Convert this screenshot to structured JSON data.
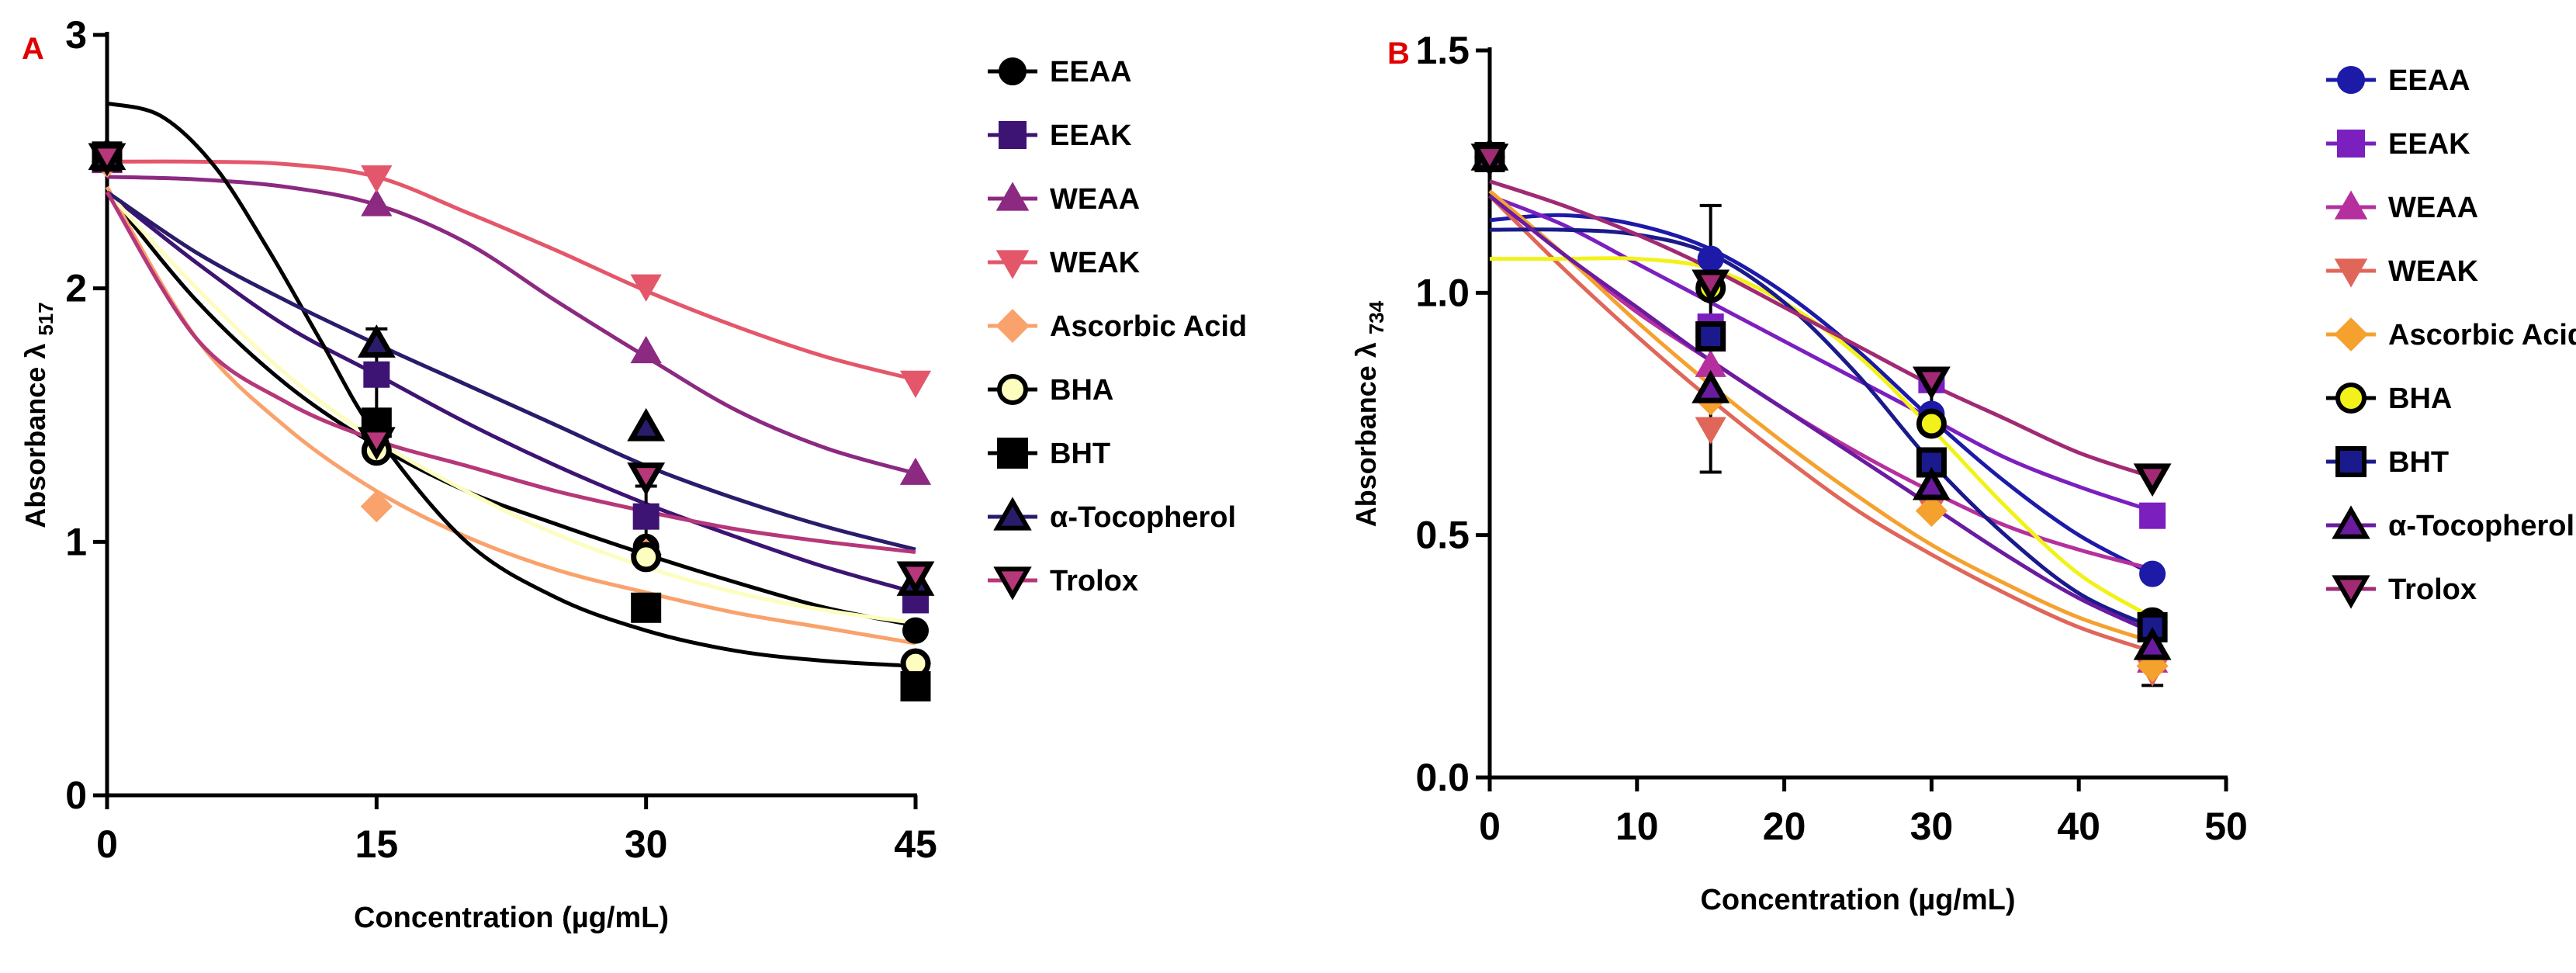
{
  "chart_data": [
    {
      "panel_letter": "A",
      "type": "line",
      "title": "",
      "xlabel": "Concentration (µg/mL)",
      "ylabel_main": "Absorbance λ",
      "ylabel_sub": "517",
      "xlim": [
        0,
        45
      ],
      "ylim": [
        0,
        3
      ],
      "xticks": [
        0,
        15,
        30,
        45
      ],
      "yticks": [
        0,
        1,
        2,
        3
      ],
      "xtick_labels": [
        "0",
        "15",
        "30",
        "45"
      ],
      "ytick_labels": [
        "0",
        "1",
        "2",
        "3"
      ],
      "x": [
        0,
        15,
        30,
        45
      ],
      "series": [
        {
          "name": "EEAA",
          "marker": "circle",
          "color": "#000000",
          "values": [
            2.52,
            1.38,
            0.98,
            0.65
          ],
          "fit": [
            [
              0,
              2.38
            ],
            [
              5,
              1.95
            ],
            [
              10,
              1.62
            ],
            [
              15,
              1.38
            ],
            [
              20,
              1.2
            ],
            [
              25,
              1.07
            ],
            [
              30,
              0.95
            ],
            [
              35,
              0.84
            ],
            [
              40,
              0.74
            ],
            [
              45,
              0.67
            ]
          ]
        },
        {
          "name": "EEAK",
          "marker": "square",
          "color": "#3d1473",
          "values": [
            2.52,
            1.66,
            1.1,
            0.77
          ],
          "fit": [
            [
              0,
              2.38
            ],
            [
              5,
              2.1
            ],
            [
              10,
              1.85
            ],
            [
              15,
              1.66
            ],
            [
              20,
              1.47
            ],
            [
              25,
              1.3
            ],
            [
              30,
              1.15
            ],
            [
              35,
              1.02
            ],
            [
              40,
              0.9
            ],
            [
              45,
              0.8
            ]
          ]
        },
        {
          "name": "WEAA",
          "marker": "triangle-up",
          "color": "#8c2981",
          "values": [
            2.5,
            2.33,
            1.75,
            1.27
          ],
          "fit": [
            [
              0,
              2.44
            ],
            [
              5,
              2.43
            ],
            [
              10,
              2.4
            ],
            [
              15,
              2.33
            ],
            [
              20,
              2.18
            ],
            [
              25,
              1.95
            ],
            [
              30,
              1.73
            ],
            [
              35,
              1.52
            ],
            [
              40,
              1.37
            ],
            [
              45,
              1.27
            ]
          ]
        },
        {
          "name": "WEAK",
          "marker": "triangle-down",
          "color": "#e4576a",
          "values": [
            2.5,
            2.44,
            2.01,
            1.63
          ],
          "fit": [
            [
              0,
              2.5
            ],
            [
              5,
              2.5
            ],
            [
              10,
              2.49
            ],
            [
              15,
              2.44
            ],
            [
              20,
              2.3
            ],
            [
              25,
              2.15
            ],
            [
              30,
              1.99
            ],
            [
              35,
              1.85
            ],
            [
              40,
              1.73
            ],
            [
              45,
              1.64
            ]
          ]
        },
        {
          "name": "Ascorbic Acid",
          "marker": "diamond",
          "color": "#f9a26c",
          "values": [
            2.5,
            1.14,
            0.95,
            0.52
          ],
          "fit": [
            [
              0,
              2.4
            ],
            [
              5,
              1.8
            ],
            [
              10,
              1.45
            ],
            [
              15,
              1.2
            ],
            [
              20,
              1.02
            ],
            [
              25,
              0.89
            ],
            [
              30,
              0.8
            ],
            [
              35,
              0.72
            ],
            [
              40,
              0.66
            ],
            [
              45,
              0.6
            ]
          ]
        },
        {
          "name": "BHA",
          "marker": "circle-open",
          "color": "#fcfdbf",
          "values": [
            2.52,
            1.36,
            0.94,
            0.52
          ],
          "fit": [
            [
              0,
              2.38
            ],
            [
              5,
              2.0
            ],
            [
              10,
              1.66
            ],
            [
              15,
              1.4
            ],
            [
              20,
              1.2
            ],
            [
              25,
              1.03
            ],
            [
              30,
              0.9
            ],
            [
              35,
              0.8
            ],
            [
              40,
              0.73
            ],
            [
              45,
              0.68
            ]
          ]
        },
        {
          "name": "BHT",
          "marker": "square-open",
          "color": "#000000",
          "values": [
            2.52,
            1.47,
            0.74,
            0.43
          ],
          "fit": [
            [
              0,
              2.73
            ],
            [
              3,
              2.68
            ],
            [
              6,
              2.48
            ],
            [
              9,
              2.15
            ],
            [
              12,
              1.78
            ],
            [
              15,
              1.42
            ],
            [
              20,
              1.0
            ],
            [
              25,
              0.78
            ],
            [
              30,
              0.65
            ],
            [
              35,
              0.57
            ],
            [
              40,
              0.53
            ],
            [
              45,
              0.51
            ]
          ]
        },
        {
          "name": "α-Tocopherol",
          "marker": "triangle-open",
          "color": "#2a1c6b",
          "values": [
            2.52,
            1.78,
            1.45,
            0.84
          ],
          "fit": [
            [
              0,
              2.38
            ],
            [
              5,
              2.14
            ],
            [
              10,
              1.95
            ],
            [
              15,
              1.78
            ],
            [
              20,
              1.62
            ],
            [
              25,
              1.46
            ],
            [
              30,
              1.3
            ],
            [
              35,
              1.17
            ],
            [
              40,
              1.06
            ],
            [
              45,
              0.97
            ]
          ]
        },
        {
          "name": "Trolox",
          "marker": "triangle-down-open",
          "color": "#b6377a",
          "values": [
            2.52,
            1.4,
            1.26,
            0.87
          ],
          "fit": [
            [
              0,
              2.38
            ],
            [
              5,
              1.8
            ],
            [
              10,
              1.55
            ],
            [
              15,
              1.4
            ],
            [
              20,
              1.3
            ],
            [
              25,
              1.2
            ],
            [
              30,
              1.12
            ],
            [
              35,
              1.05
            ],
            [
              40,
              1.0
            ],
            [
              45,
              0.96
            ]
          ]
        }
      ]
    },
    {
      "panel_letter": "B",
      "type": "line",
      "title": "",
      "xlabel": "Concentration (µg/mL)",
      "ylabel_main": "Absorbance λ",
      "ylabel_sub": "734",
      "xlim": [
        0,
        50
      ],
      "ylim": [
        0,
        1.5
      ],
      "xticks": [
        0,
        10,
        20,
        30,
        40,
        50
      ],
      "yticks": [
        0,
        0.5,
        1.0,
        1.5
      ],
      "xtick_labels": [
        "0",
        "10",
        "20",
        "30",
        "40",
        "50"
      ],
      "ytick_labels": [
        "0.0",
        "0.5",
        "1.0",
        "1.5"
      ],
      "x": [
        0,
        15,
        30,
        45
      ],
      "series": [
        {
          "name": "EEAA",
          "marker": "circle",
          "color": "#1d1aa8",
          "values": [
            1.28,
            1.07,
            0.75,
            0.42
          ],
          "fit": [
            [
              0,
              1.15
            ],
            [
              5,
              1.16
            ],
            [
              10,
              1.14
            ],
            [
              15,
              1.09
            ],
            [
              20,
              1.0
            ],
            [
              25,
              0.88
            ],
            [
              30,
              0.74
            ],
            [
              35,
              0.61
            ],
            [
              40,
              0.5
            ],
            [
              45,
              0.42
            ]
          ]
        },
        {
          "name": "EEAK",
          "marker": "square",
          "color": "#7b1fbf",
          "values": [
            1.28,
            0.93,
            0.82,
            0.54
          ],
          "fit": [
            [
              0,
              1.2
            ],
            [
              5,
              1.14
            ],
            [
              10,
              1.06
            ],
            [
              15,
              0.98
            ],
            [
              20,
              0.9
            ],
            [
              25,
              0.82
            ],
            [
              30,
              0.74
            ],
            [
              35,
              0.66
            ],
            [
              40,
              0.6
            ],
            [
              45,
              0.55
            ]
          ]
        },
        {
          "name": "WEAA",
          "marker": "triangle-up",
          "color": "#b5309e",
          "values": [
            1.28,
            0.85,
            0.6,
            0.24
          ],
          "fit": [
            [
              0,
              1.2
            ],
            [
              5,
              1.08
            ],
            [
              10,
              0.96
            ],
            [
              15,
              0.86
            ],
            [
              20,
              0.76
            ],
            [
              25,
              0.67
            ],
            [
              30,
              0.59
            ],
            [
              35,
              0.52
            ],
            [
              40,
              0.47
            ],
            [
              45,
              0.43
            ]
          ]
        },
        {
          "name": "WEAK",
          "marker": "triangle-down",
          "color": "#e0665a",
          "values": [
            1.28,
            0.72,
            0.56,
            0.22
          ],
          "fit": [
            [
              0,
              1.2
            ],
            [
              5,
              1.05
            ],
            [
              10,
              0.91
            ],
            [
              15,
              0.78
            ],
            [
              20,
              0.66
            ],
            [
              25,
              0.55
            ],
            [
              30,
              0.46
            ],
            [
              35,
              0.38
            ],
            [
              40,
              0.31
            ],
            [
              45,
              0.26
            ]
          ]
        },
        {
          "name": "Ascorbic Acid",
          "marker": "diamond",
          "color": "#f5a12e",
          "values": [
            1.28,
            0.78,
            0.55,
            0.23
          ],
          "fit": [
            [
              0,
              1.21
            ],
            [
              5,
              1.08
            ],
            [
              10,
              0.94
            ],
            [
              15,
              0.81
            ],
            [
              20,
              0.69
            ],
            [
              25,
              0.58
            ],
            [
              30,
              0.48
            ],
            [
              35,
              0.4
            ],
            [
              40,
              0.33
            ],
            [
              45,
              0.28
            ]
          ]
        },
        {
          "name": "BHA",
          "marker": "circle-open",
          "color": "#f2f21a",
          "values": [
            1.28,
            1.01,
            0.73,
            0.32
          ],
          "fit": [
            [
              0,
              1.07
            ],
            [
              5,
              1.07
            ],
            [
              10,
              1.07
            ],
            [
              15,
              1.05
            ],
            [
              20,
              0.98
            ],
            [
              25,
              0.87
            ],
            [
              30,
              0.72
            ],
            [
              35,
              0.56
            ],
            [
              40,
              0.42
            ],
            [
              45,
              0.33
            ]
          ]
        },
        {
          "name": "BHT",
          "marker": "square-open",
          "color": "#1a1a8c",
          "values": [
            1.28,
            0.91,
            0.65,
            0.31
          ],
          "fit": [
            [
              0,
              1.13
            ],
            [
              5,
              1.13
            ],
            [
              10,
              1.12
            ],
            [
              15,
              1.08
            ],
            [
              20,
              0.98
            ],
            [
              25,
              0.83
            ],
            [
              30,
              0.65
            ],
            [
              35,
              0.5
            ],
            [
              40,
              0.38
            ],
            [
              45,
              0.31
            ]
          ]
        },
        {
          "name": "α-Tocopherol",
          "marker": "triangle-open",
          "color": "#6a1ba0",
          "values": [
            1.28,
            0.8,
            0.6,
            0.27
          ],
          "fit": [
            [
              0,
              1.2
            ],
            [
              5,
              1.08
            ],
            [
              10,
              0.97
            ],
            [
              15,
              0.86
            ],
            [
              20,
              0.76
            ],
            [
              25,
              0.66
            ],
            [
              30,
              0.56
            ],
            [
              35,
              0.46
            ],
            [
              40,
              0.37
            ],
            [
              45,
              0.3
            ]
          ]
        },
        {
          "name": "Trolox",
          "marker": "triangle-down-open",
          "color": "#a12a74",
          "values": [
            1.28,
            1.02,
            0.82,
            0.62
          ],
          "fit": [
            [
              0,
              1.23
            ],
            [
              5,
              1.18
            ],
            [
              10,
              1.12
            ],
            [
              15,
              1.05
            ],
            [
              20,
              0.97
            ],
            [
              25,
              0.89
            ],
            [
              30,
              0.81
            ],
            [
              35,
              0.74
            ],
            [
              40,
              0.67
            ],
            [
              45,
              0.62
            ]
          ]
        }
      ]
    }
  ]
}
